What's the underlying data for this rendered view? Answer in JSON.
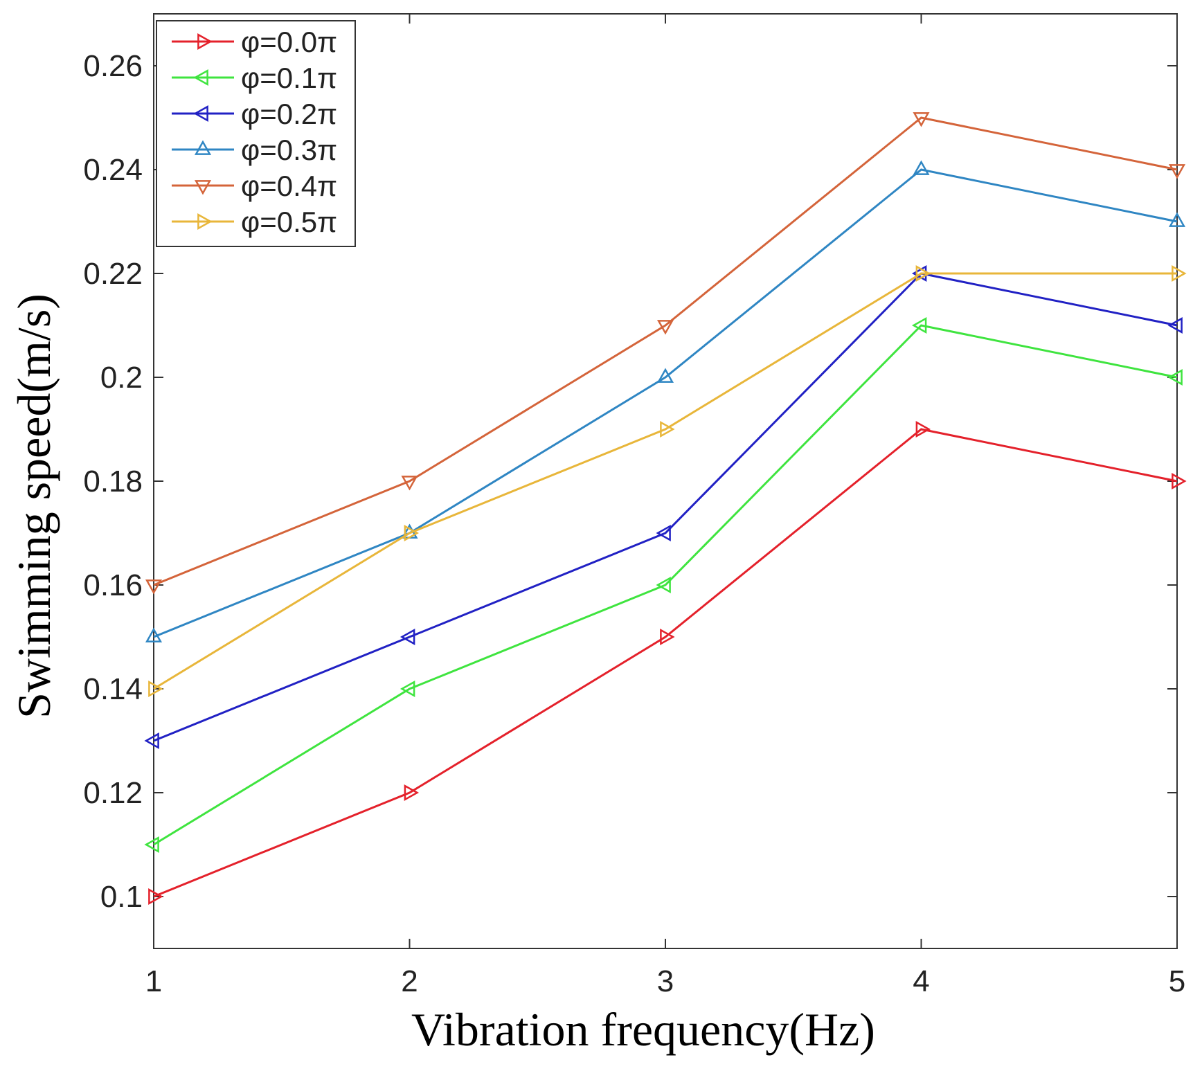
{
  "chart_data": {
    "type": "line",
    "title": "",
    "xlabel": "Vibration frequency(Hz)",
    "ylabel": "Swimming speed(m/s)",
    "x": [
      1,
      2,
      3,
      4,
      5
    ],
    "xlim": [
      1,
      5
    ],
    "ylim": [
      0.09,
      0.27
    ],
    "xticks": [
      1,
      2,
      3,
      4,
      5
    ],
    "xtick_labels": [
      "1",
      "2",
      "3",
      "4",
      "5"
    ],
    "yticks": [
      0.1,
      0.12,
      0.14,
      0.16,
      0.18,
      0.2,
      0.22,
      0.24,
      0.26
    ],
    "ytick_labels": [
      "0.1",
      "0.12",
      "0.14",
      "0.16",
      "0.18",
      "0.2",
      "0.22",
      "0.24",
      "0.26"
    ],
    "grid": false,
    "legend_position": "top-left",
    "series": [
      {
        "name": "φ=0.0π",
        "color": "#e4212b",
        "marker": "triangle-right",
        "values": [
          0.1,
          0.12,
          0.15,
          0.19,
          0.18
        ]
      },
      {
        "name": "φ=0.1π",
        "color": "#3fe43f",
        "marker": "triangle-left",
        "values": [
          0.11,
          0.14,
          0.16,
          0.21,
          0.2
        ]
      },
      {
        "name": "φ=0.2π",
        "color": "#2121c4",
        "marker": "triangle-left",
        "values": [
          0.13,
          0.15,
          0.17,
          0.22,
          0.21
        ]
      },
      {
        "name": "φ=0.3π",
        "color": "#2f86c3",
        "marker": "triangle-up",
        "values": [
          0.15,
          0.17,
          0.2,
          0.24,
          0.23
        ]
      },
      {
        "name": "φ=0.4π",
        "color": "#d4643a",
        "marker": "triangle-down",
        "values": [
          0.16,
          0.18,
          0.21,
          0.25,
          0.24
        ]
      },
      {
        "name": "φ=0.5π",
        "color": "#e8b63a",
        "marker": "triangle-right",
        "values": [
          0.14,
          0.17,
          0.19,
          0.22,
          0.22
        ]
      }
    ]
  }
}
